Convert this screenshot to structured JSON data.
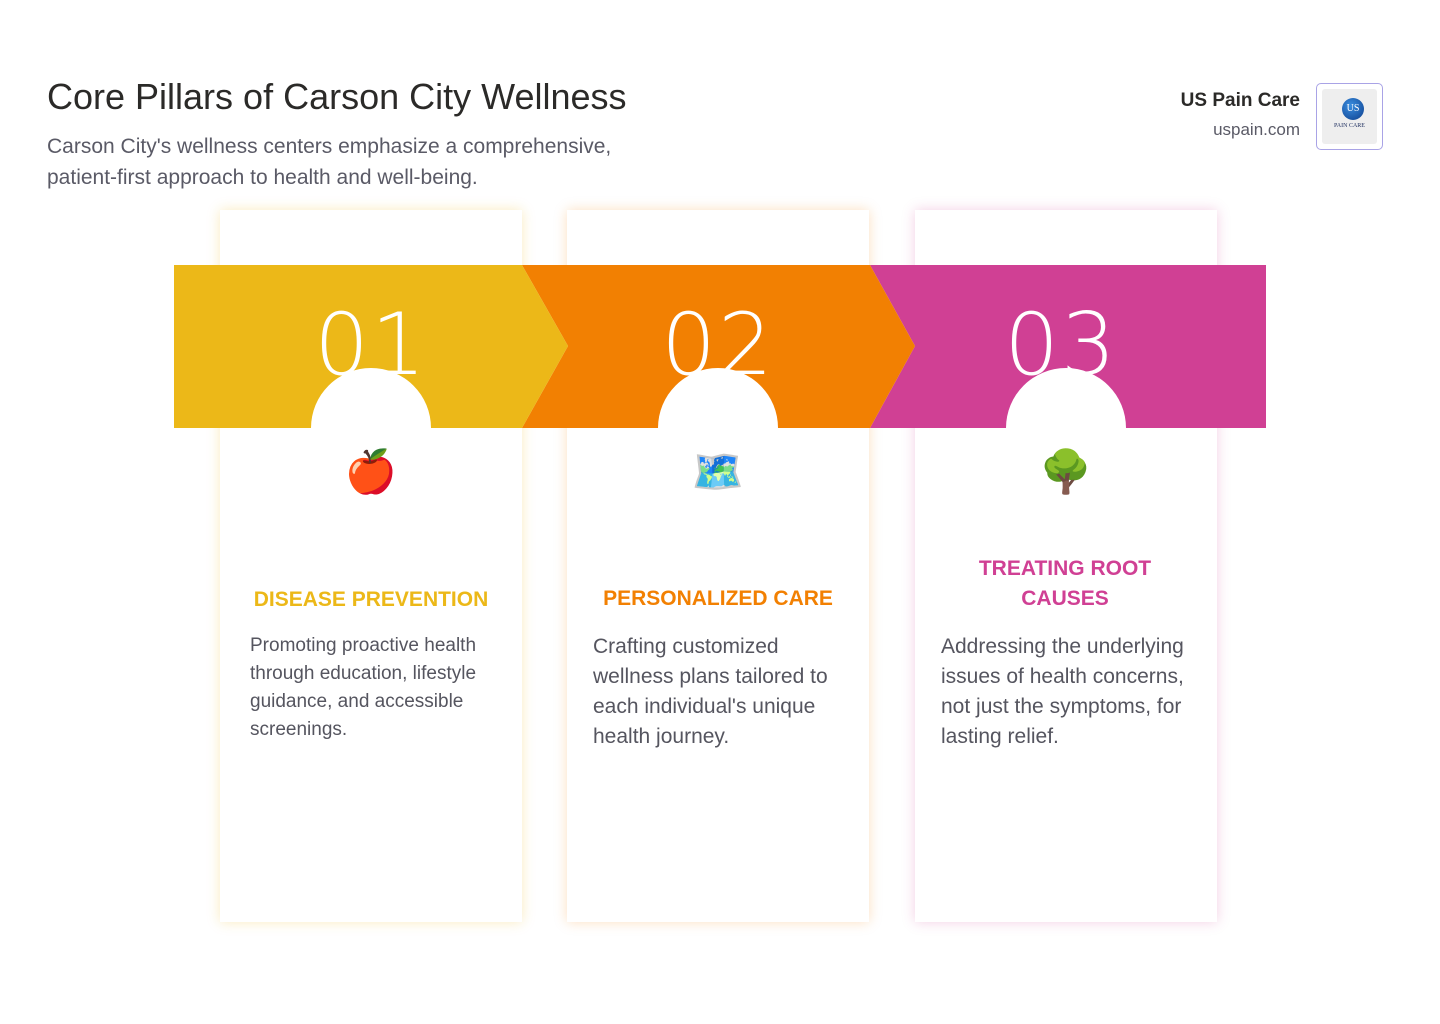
{
  "header": {
    "title": "Core Pillars of Carson City Wellness",
    "subtitle": "Carson City's wellness centers emphasize a comprehensive, patient-first approach to health and well-being."
  },
  "brand": {
    "name": "US Pain Care",
    "url": "uspain.com",
    "logo_text": "PAIN CARE",
    "logo_mark": "US"
  },
  "colors": {
    "pillar1": "#ecb818",
    "pillar2": "#f28002",
    "pillar3": "#d04094"
  },
  "pillars": [
    {
      "number": "01",
      "icon": "apple-icon",
      "emoji": "🍎",
      "heading": "DISEASE PREVENTION",
      "text": "Promoting proactive health through education, lifestyle guidance, and accessible screenings."
    },
    {
      "number": "02",
      "icon": "world-map-icon",
      "emoji": "🗺️",
      "heading": "PERSONALIZED CARE",
      "text": "Crafting customized wellness plans tailored to each individual's unique health journey."
    },
    {
      "number": "03",
      "icon": "tree-icon",
      "emoji": "🌳",
      "heading": "TREATING ROOT CAUSES",
      "text": "Addressing the underlying issues of health concerns, not just the symptoms, for lasting relief."
    }
  ]
}
